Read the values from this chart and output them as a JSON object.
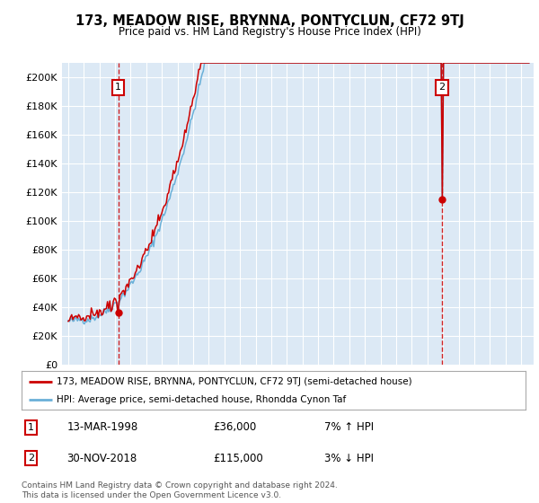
{
  "title": "173, MEADOW RISE, BRYNNA, PONTYCLUN, CF72 9TJ",
  "subtitle": "Price paid vs. HM Land Registry's House Price Index (HPI)",
  "legend_line1": "173, MEADOW RISE, BRYNNA, PONTYCLUN, CF72 9TJ (semi-detached house)",
  "legend_line2": "HPI: Average price, semi-detached house, Rhondda Cynon Taf",
  "footnote": "Contains HM Land Registry data © Crown copyright and database right 2024.\nThis data is licensed under the Open Government Licence v3.0.",
  "transaction1_date": "13-MAR-1998",
  "transaction1_price": "£36,000",
  "transaction1_hpi": "7% ↑ HPI",
  "transaction1_year": 1998.2,
  "transaction1_value": 36000,
  "transaction2_date": "30-NOV-2018",
  "transaction2_price": "£115,000",
  "transaction2_hpi": "3% ↓ HPI",
  "transaction2_year": 2018.92,
  "transaction2_value": 115000,
  "hpi_color": "#6ab0d8",
  "price_color": "#cc0000",
  "vline_color": "#cc0000",
  "marker_color": "#cc0000",
  "box_color": "#cc0000",
  "ylim_min": 0,
  "ylim_max": 210000,
  "yticks": [
    0,
    20000,
    40000,
    60000,
    80000,
    100000,
    120000,
    140000,
    160000,
    180000,
    200000
  ],
  "ytick_labels": [
    "£0",
    "£20K",
    "£40K",
    "£60K",
    "£80K",
    "£100K",
    "£120K",
    "£140K",
    "£160K",
    "£180K",
    "£200K"
  ],
  "background_color": "#dce9f5"
}
